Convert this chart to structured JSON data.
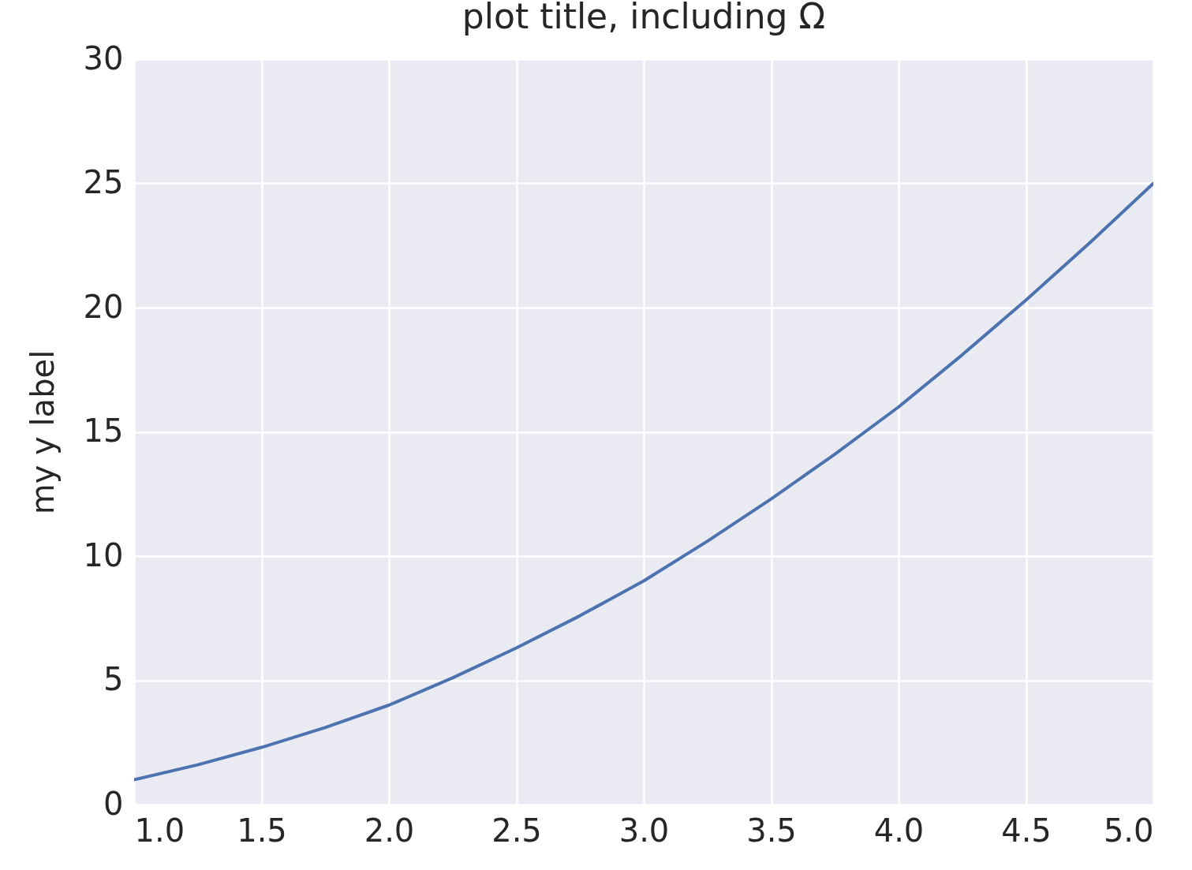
{
  "chart_data": {
    "type": "line",
    "title": "plot title, including Ω",
    "ylabel": "my y label",
    "x": [
      1,
      1.25,
      1.5,
      1.75,
      2,
      2.25,
      2.5,
      2.75,
      3,
      3.25,
      3.5,
      3.75,
      4,
      4.25,
      4.5,
      4.75,
      5
    ],
    "series": [
      {
        "color": "#4c72b0",
        "values": [
          1,
          1.6,
          2.3,
          3.1,
          4,
          5.1,
          6.3,
          7.6,
          9,
          10.6,
          12.3,
          14.1,
          16,
          18.1,
          20.3,
          22.6,
          25
        ]
      }
    ],
    "xlim": [
      1,
      5
    ],
    "xticks": [
      {
        "value": 1,
        "label": "1.0"
      },
      1.5,
      {
        "value": 2,
        "label": "2.0"
      },
      2.5,
      {
        "value": 3,
        "label": "3.0"
      },
      3.5,
      {
        "value": 4,
        "label": "4.0"
      },
      4.5,
      {
        "value": 5,
        "label": "5.0"
      }
    ],
    "ylim": [
      0,
      30
    ],
    "yticks": [
      0,
      5,
      10,
      15,
      20,
      25,
      30
    ],
    "grid": true,
    "line_style": "solid"
  }
}
